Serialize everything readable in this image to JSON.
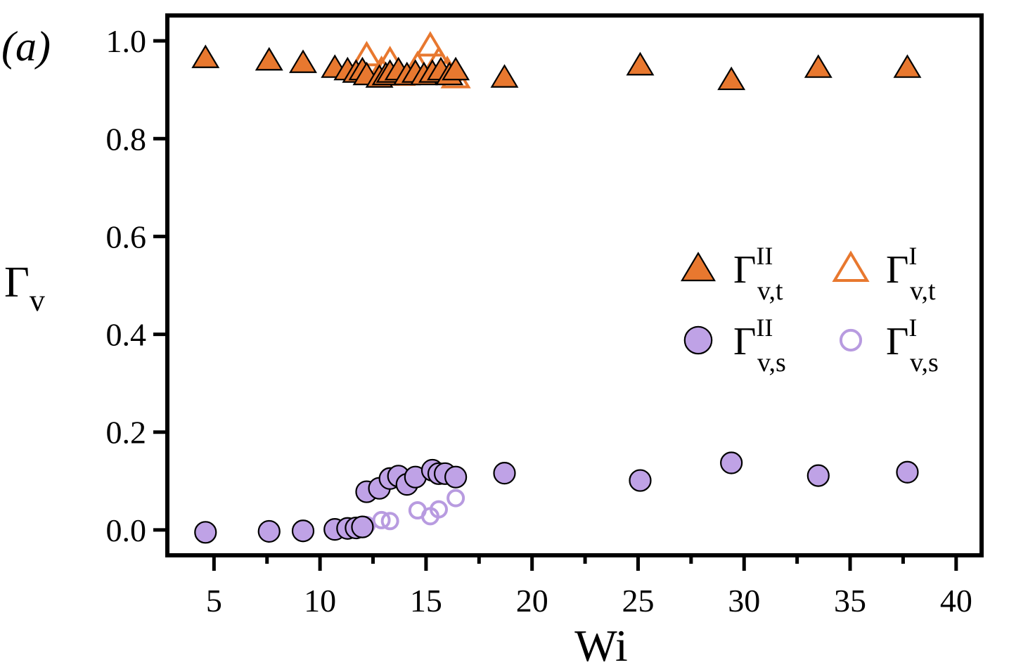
{
  "panel_label": "(a)",
  "colors": {
    "orange_fill": "#E8782F",
    "orange_edge": "#E8782F",
    "purple_fill": "#BFA2E6",
    "purple_edge": "#B89BE0",
    "marker_edge": "#000000",
    "axis": "#000000"
  },
  "chart_data": {
    "type": "scatter",
    "title": "",
    "xlabel": "Wi",
    "ylabel": "Γ",
    "ylabel_sub": "v",
    "xlim": [
      2.8,
      41.2
    ],
    "ylim": [
      -0.052,
      1.052
    ],
    "xticks": [
      5,
      10,
      15,
      20,
      25,
      30,
      35,
      40
    ],
    "xtick_labels": [
      "5",
      "10",
      "15",
      "20",
      "25",
      "30",
      "35",
      "40"
    ],
    "xticks_minor": [
      7.5,
      12.5,
      17.5,
      22.5,
      27.5,
      32.5,
      37.5
    ],
    "yticks": [
      0.0,
      0.2,
      0.4,
      0.6,
      0.8,
      1.0
    ],
    "ytick_labels": [
      "0.0",
      "0.2",
      "0.4",
      "0.6",
      "0.8",
      "1.0"
    ],
    "legend_position": "center-right",
    "series": [
      {
        "name": "Γ_v,t^I",
        "legend_main": "Γ",
        "legend_sup": "I",
        "legend_sub": "v,t",
        "marker": "triangle-open",
        "color": "#E8782F",
        "x": [
          12.2,
          12.9,
          13.3,
          13.8,
          14.6,
          15.2,
          15.6,
          16.0,
          16.4
        ],
        "y": [
          0.97,
          0.94,
          0.96,
          0.93,
          0.95,
          0.99,
          0.96,
          0.94,
          0.925
        ]
      },
      {
        "name": "Γ_v,s^I",
        "legend_main": "Γ",
        "legend_sup": "I",
        "legend_sub": "v,s",
        "marker": "circle-open",
        "color": "#B89BE0",
        "x": [
          12.2,
          12.9,
          13.3,
          14.6,
          15.2,
          15.6,
          16.4
        ],
        "y": [
          0.01,
          0.02,
          0.018,
          0.04,
          0.028,
          0.042,
          0.065
        ]
      },
      {
        "name": "Γ_v,t^II",
        "legend_main": "Γ",
        "legend_sup": "II",
        "legend_sub": "v,t",
        "marker": "triangle-filled",
        "color": "#E8782F",
        "x": [
          4.6,
          7.6,
          9.2,
          10.7,
          11.3,
          11.7,
          12.0,
          12.2,
          12.8,
          13.1,
          13.3,
          13.7,
          14.1,
          14.5,
          14.9,
          15.3,
          15.7,
          16.1,
          16.4,
          18.7,
          25.1,
          29.4,
          33.5,
          37.7
        ],
        "y": [
          0.965,
          0.96,
          0.955,
          0.945,
          0.94,
          0.935,
          0.94,
          0.93,
          0.925,
          0.93,
          0.935,
          0.94,
          0.93,
          0.935,
          0.93,
          0.935,
          0.94,
          0.93,
          0.94,
          0.925,
          0.95,
          0.92,
          0.945,
          0.945
        ]
      },
      {
        "name": "Γ_v,s^II",
        "legend_main": "Γ",
        "legend_sup": "II",
        "legend_sub": "v,s",
        "marker": "circle-filled",
        "color": "#BFA2E6",
        "x": [
          4.6,
          7.6,
          9.2,
          10.7,
          11.3,
          11.7,
          12.0,
          12.2,
          12.8,
          13.3,
          13.7,
          14.1,
          14.5,
          15.3,
          15.6,
          15.9,
          16.4,
          18.7,
          25.1,
          29.4,
          33.5,
          37.7
        ],
        "y": [
          -0.005,
          -0.003,
          -0.002,
          0.001,
          0.003,
          0.004,
          0.006,
          0.078,
          0.085,
          0.105,
          0.11,
          0.093,
          0.108,
          0.122,
          0.115,
          0.115,
          0.108,
          0.116,
          0.101,
          0.137,
          0.111,
          0.118
        ]
      }
    ]
  }
}
